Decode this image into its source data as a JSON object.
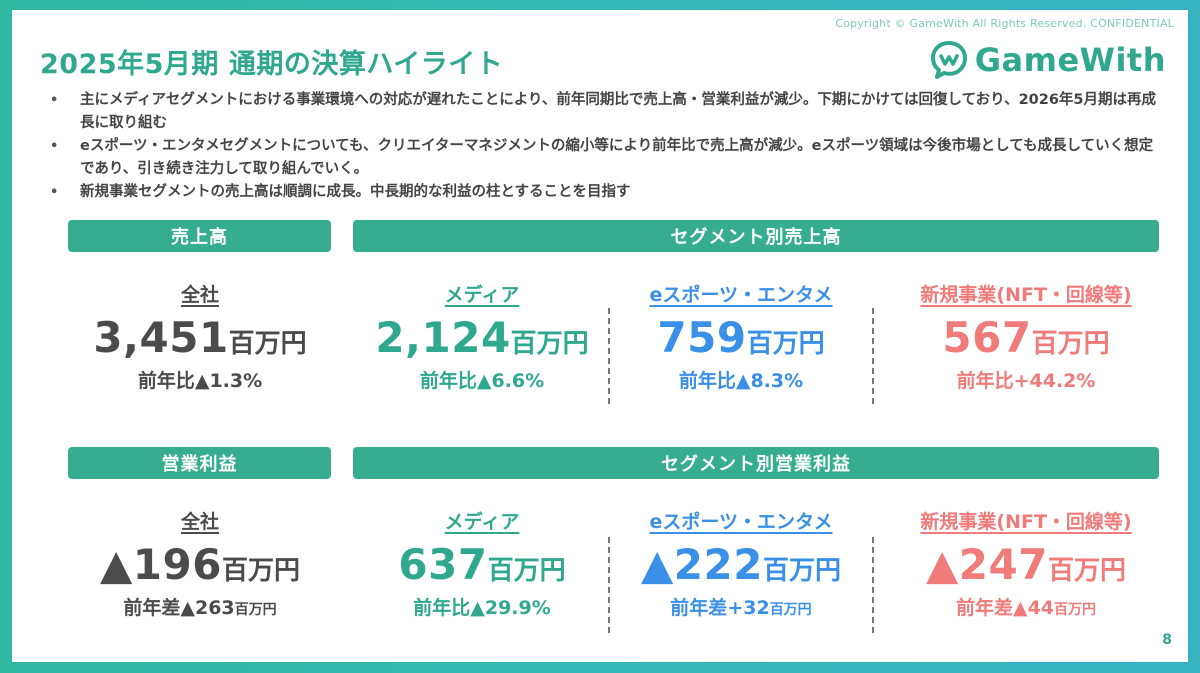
{
  "copyright": "Copyright © GameWith All Rights Reserved. CONFIDENTIAL",
  "title": "2025年5月期 通期の決算ハイライト",
  "logo": {
    "text": "GameWith",
    "icon": "gamewith-logo-icon",
    "color": "#2fa88e"
  },
  "bullets": [
    "主にメディアセグメントにおける事業環境への対応が遅れたことにより、前年同期比で売上高・営業利益が減少。下期にかけては回復しており、2026年5月期は再成長に取り組む",
    "eスポーツ・エンタメセグメントについても、クリエイターマネジメントの縮小等により前年比で売上高が減少。eスポーツ領域は今後市場としても成長していく想定であり、引き続き注力して取り組んでいく。",
    "新規事業セグメントの売上高は順調に成長。中長期的な利益の柱とすることを目指す"
  ],
  "sales": {
    "total_header": "売上高",
    "segment_header": "セグメント別売上高",
    "total": {
      "label": "全社",
      "value": "3,451",
      "unit": "百万円",
      "change_label": "前年比",
      "change": "▲1.3%"
    },
    "segments": [
      {
        "label": "メディア",
        "value": "2,124",
        "unit": "百万円",
        "change_label": "前年比",
        "change": "▲6.6%"
      },
      {
        "label": "eスポーツ・エンタメ",
        "value": "759",
        "unit": "百万円",
        "change_label": "前年比",
        "change": "▲8.3%"
      },
      {
        "label": "新規事業(NFT・回線等)",
        "value": "567",
        "unit": "百万円",
        "change_label": "前年比",
        "change": "+44.2%"
      }
    ]
  },
  "profit": {
    "total_header": "営業利益",
    "segment_header": "セグメント別営業利益",
    "total": {
      "label": "全社",
      "value": "▲196",
      "unit": "百万円",
      "change_label": "前年差",
      "change": "▲263",
      "change_unit": "百万円"
    },
    "segments": [
      {
        "label": "メディア",
        "value": "637",
        "unit": "百万円",
        "change_label": "前年比",
        "change": "▲29.9%",
        "change_unit": ""
      },
      {
        "label": "eスポーツ・エンタメ",
        "value": "▲222",
        "unit": "百万円",
        "change_label": "前年差",
        "change": "+32",
        "change_unit": "百万円"
      },
      {
        "label": "新規事業(NFT・回線等)",
        "value": "▲247",
        "unit": "百万円",
        "change_label": "前年差",
        "change": "▲44",
        "change_unit": "百万円"
      }
    ]
  },
  "page_number": "8",
  "colors": {
    "accent": "#35ad8e",
    "media": "#2fa88e",
    "esports": "#3a8fe6",
    "new_business": "#ef7b7b",
    "neutral": "#4b4b4b"
  }
}
